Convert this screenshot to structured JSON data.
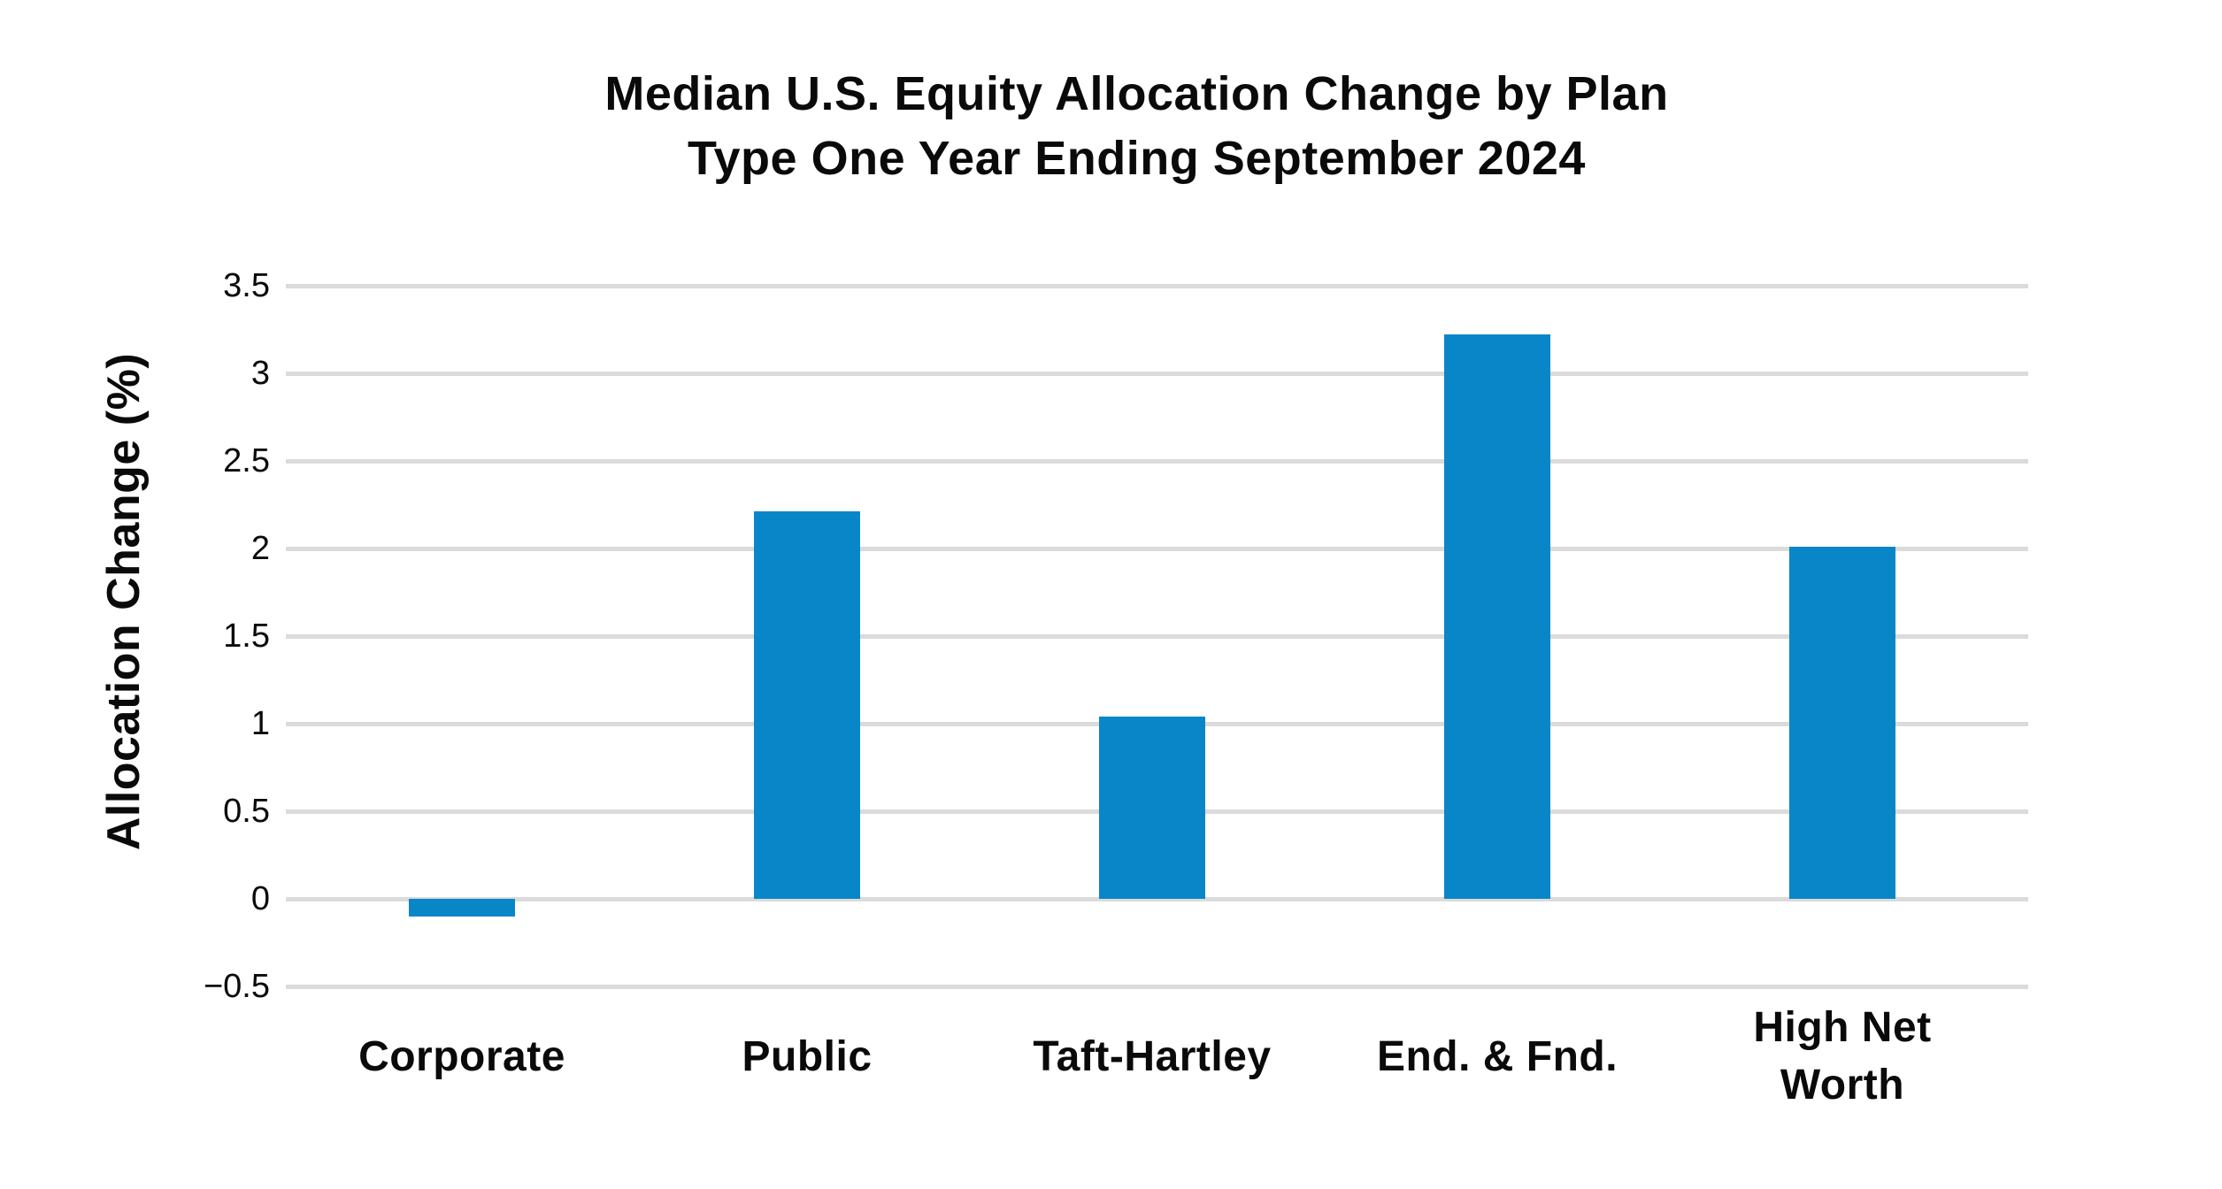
{
  "page": {
    "background": "#ffffff"
  },
  "chart_data": {
    "type": "bar",
    "title": "Median U.S. Equity Allocation Change by Plan Type One Year Ending September 2024",
    "title_lines": [
      "Median U.S. Equity Allocation Change by Plan",
      "Type One Year Ending September 2024"
    ],
    "categories": [
      "Corporate",
      "Public",
      "Taft-Hartley",
      "End. & Fnd.",
      "High Net Worth"
    ],
    "category_display": [
      "Corporate",
      "Public",
      "Taft-Hartley",
      "End. & Fnd.",
      "High Net\nWorth"
    ],
    "values": [
      -0.1,
      2.21,
      1.04,
      3.22,
      2.01
    ],
    "xlabel": "",
    "ylabel": "Allocation Change (%)",
    "ylim": [
      -0.5,
      3.5
    ],
    "yticks": [
      3.5,
      3,
      2.5,
      2,
      1.5,
      1,
      0.5,
      0,
      -0.5
    ],
    "ytick_labels": [
      "3.5",
      "3",
      "2.5",
      "2",
      "1.5",
      "1",
      "0.5",
      "0",
      "−0.5"
    ],
    "grid": "horizontal-only",
    "legend": "none",
    "bar_color": "#0886C8",
    "gridline_color": "#DBDBDB",
    "text_color": "#0A0A0A"
  }
}
